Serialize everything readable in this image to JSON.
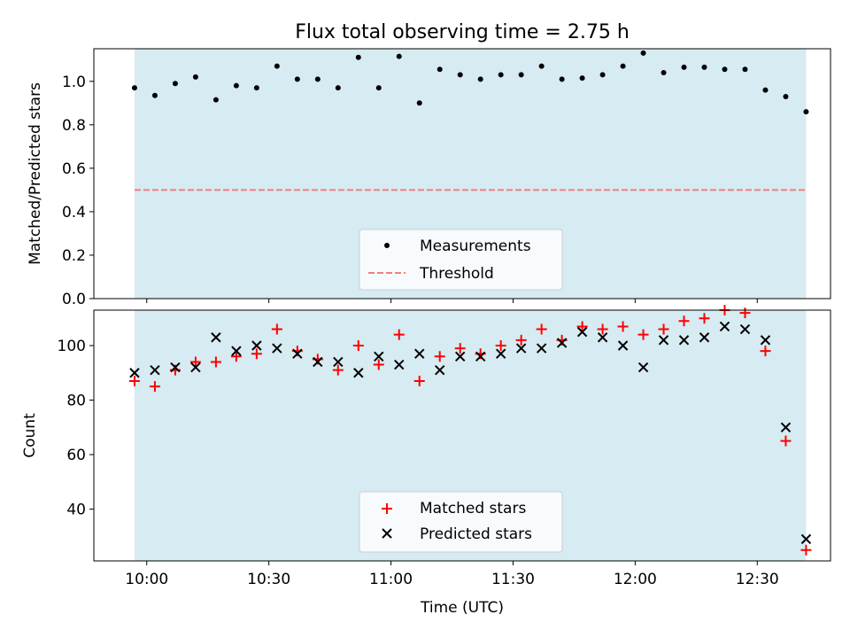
{
  "chart_data": [
    {
      "type": "scatter",
      "title": "Flux total observing time = 2.75 h",
      "ylabel": "Matched/Predicted stars",
      "xlabel": "",
      "ylim": [
        0,
        1.15
      ],
      "yticks": [
        0.0,
        0.2,
        0.4,
        0.6,
        0.8,
        1.0
      ],
      "ytick_labels": [
        "0.0",
        "0.2",
        "0.4",
        "0.6",
        "0.8",
        "1.0"
      ],
      "shaded_span": {
        "start": "09:57",
        "end": "12:42",
        "color": "#add8e6"
      },
      "threshold": {
        "name": "Threshold",
        "value": 0.5,
        "color": "#f08080",
        "style": "dashed"
      },
      "legend": {
        "position": "lower center",
        "entries": [
          "Measurements",
          "Threshold"
        ]
      },
      "series": [
        {
          "name": "Measurements",
          "color": "#000000",
          "marker": "dot",
          "x": [
            "09:57",
            "10:02",
            "10:07",
            "10:12",
            "10:17",
            "10:22",
            "10:27",
            "10:32",
            "10:37",
            "10:42",
            "10:47",
            "10:52",
            "10:57",
            "11:02",
            "11:07",
            "11:12",
            "11:17",
            "11:22",
            "11:27",
            "11:32",
            "11:37",
            "11:42",
            "11:47",
            "11:52",
            "11:57",
            "12:02",
            "12:07",
            "12:12",
            "12:17",
            "12:22",
            "12:27",
            "12:32",
            "12:37",
            "12:42"
          ],
          "y": [
            0.97,
            0.935,
            0.99,
            1.02,
            0.915,
            0.98,
            0.97,
            1.07,
            1.01,
            1.01,
            0.97,
            1.11,
            0.97,
            1.115,
            0.9,
            1.055,
            1.03,
            1.01,
            1.03,
            1.03,
            1.07,
            1.01,
            1.015,
            1.03,
            1.07,
            1.13,
            1.04,
            1.065,
            1.065,
            1.055,
            1.055,
            0.96,
            0.93,
            0.86
          ]
        }
      ]
    },
    {
      "type": "scatter",
      "title": "",
      "ylabel": "Count",
      "xlabel": "Time (UTC)",
      "ylim": [
        21,
        113
      ],
      "yticks": [
        40,
        60,
        80,
        100
      ],
      "ytick_labels": [
        "40",
        "60",
        "80",
        "100"
      ],
      "xlim": [
        "09:47",
        "12:48"
      ],
      "xticks": [
        "10:00",
        "10:30",
        "11:00",
        "11:30",
        "12:00",
        "12:30"
      ],
      "xtick_labels": [
        "10:00",
        "10:30",
        "11:00",
        "11:30",
        "12:00",
        "12:30"
      ],
      "shaded_span": {
        "start": "09:57",
        "end": "12:42",
        "color": "#add8e6"
      },
      "legend": {
        "position": "lower center",
        "entries": [
          "Matched stars",
          "Predicted stars"
        ]
      },
      "series": [
        {
          "name": "Matched stars",
          "color": "#ff0000",
          "marker": "plus",
          "x": [
            "09:57",
            "10:02",
            "10:07",
            "10:12",
            "10:17",
            "10:22",
            "10:27",
            "10:32",
            "10:37",
            "10:42",
            "10:47",
            "10:52",
            "10:57",
            "11:02",
            "11:07",
            "11:12",
            "11:17",
            "11:22",
            "11:27",
            "11:32",
            "11:37",
            "11:42",
            "11:47",
            "11:52",
            "11:57",
            "12:02",
            "12:07",
            "12:12",
            "12:17",
            "12:22",
            "12:27",
            "12:32",
            "12:37",
            "12:42"
          ],
          "y": [
            87,
            85,
            91,
            94,
            94,
            96,
            97,
            106,
            98,
            95,
            91,
            100,
            93,
            104,
            87,
            96,
            99,
            97,
            100,
            102,
            106,
            102,
            107,
            106,
            107,
            104,
            106,
            109,
            110,
            113,
            112,
            98,
            65,
            25
          ]
        },
        {
          "name": "Predicted stars",
          "color": "#000000",
          "marker": "x",
          "x": [
            "09:57",
            "10:02",
            "10:07",
            "10:12",
            "10:17",
            "10:22",
            "10:27",
            "10:32",
            "10:37",
            "10:42",
            "10:47",
            "10:52",
            "10:57",
            "11:02",
            "11:07",
            "11:12",
            "11:17",
            "11:22",
            "11:27",
            "11:32",
            "11:37",
            "11:42",
            "11:47",
            "11:52",
            "11:57",
            "12:02",
            "12:07",
            "12:12",
            "12:17",
            "12:22",
            "12:27",
            "12:32",
            "12:37",
            "12:42"
          ],
          "y": [
            90,
            91,
            92,
            92,
            103,
            98,
            100,
            99,
            97,
            94,
            94,
            90,
            96,
            93,
            97,
            91,
            96,
            96,
            97,
            99,
            99,
            101,
            105,
            103,
            100,
            92,
            102,
            102,
            103,
            107,
            106,
            102,
            70,
            29
          ]
        }
      ]
    }
  ]
}
